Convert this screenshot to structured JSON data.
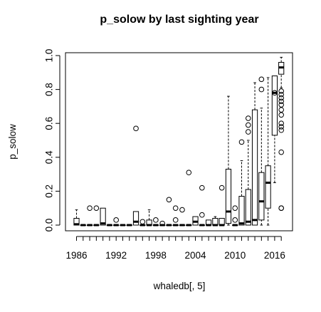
{
  "chart_data": {
    "type": "boxplot",
    "title": "p_solow by last sighting year",
    "xlabel": "whaledb[, 5]",
    "ylabel": "p_solow",
    "ylim": [
      0,
      1
    ],
    "yticks": [
      "0.0",
      "0.2",
      "0.4",
      "0.6",
      "0.8",
      "1.0"
    ],
    "xtick_labels": [
      "1986",
      "1992",
      "1998",
      "2004",
      "2010",
      "2016"
    ],
    "grid": false,
    "legend": "none",
    "boxes": [
      {
        "year": 1986,
        "lo": 0.0,
        "q1": 0.0,
        "med": 0.005,
        "q3": 0.04,
        "hi": 0.09,
        "out": []
      },
      {
        "year": 1987,
        "lo": 0.0,
        "q1": 0.0,
        "med": 0.0,
        "q3": 0.0,
        "hi": 0.0,
        "out": []
      },
      {
        "year": 1988,
        "lo": 0.0,
        "q1": 0.0,
        "med": 0.0,
        "q3": 0.0,
        "hi": 0.0,
        "out": [
          0.1
        ]
      },
      {
        "year": 1989,
        "lo": 0.0,
        "q1": 0.0,
        "med": 0.0,
        "q3": 0.0,
        "hi": 0.0,
        "out": [
          0.1
        ]
      },
      {
        "year": 1990,
        "lo": 0.0,
        "q1": 0.0,
        "med": 0.01,
        "q3": 0.1,
        "hi": 0.1,
        "out": []
      },
      {
        "year": 1991,
        "lo": 0.0,
        "q1": 0.0,
        "med": 0.0,
        "q3": 0.0,
        "hi": 0.0,
        "out": []
      },
      {
        "year": 1992,
        "lo": 0.0,
        "q1": 0.0,
        "med": 0.0,
        "q3": 0.0,
        "hi": 0.0,
        "out": [
          0.03
        ]
      },
      {
        "year": 1993,
        "lo": 0.0,
        "q1": 0.0,
        "med": 0.0,
        "q3": 0.0,
        "hi": 0.0,
        "out": []
      },
      {
        "year": 1994,
        "lo": 0.0,
        "q1": 0.0,
        "med": 0.0,
        "q3": 0.0,
        "hi": 0.0,
        "out": []
      },
      {
        "year": 1995,
        "lo": 0.0,
        "q1": 0.0,
        "med": 0.02,
        "q3": 0.08,
        "hi": 0.08,
        "out": [
          0.57
        ]
      },
      {
        "year": 1996,
        "lo": 0.0,
        "q1": 0.0,
        "med": 0.0,
        "q3": 0.0,
        "hi": 0.0,
        "out": [
          0.02
        ]
      },
      {
        "year": 1997,
        "lo": 0.0,
        "q1": 0.0,
        "med": 0.0,
        "q3": 0.03,
        "hi": 0.09,
        "out": []
      },
      {
        "year": 1998,
        "lo": 0.0,
        "q1": 0.0,
        "med": 0.0,
        "q3": 0.0,
        "hi": 0.0,
        "out": [
          0.03
        ]
      },
      {
        "year": 1999,
        "lo": 0.0,
        "q1": 0.0,
        "med": 0.0,
        "q3": 0.0,
        "hi": 0.0,
        "out": [
          0.01
        ]
      },
      {
        "year": 2000,
        "lo": 0.0,
        "q1": 0.0,
        "med": 0.0,
        "q3": 0.0,
        "hi": 0.0,
        "out": [
          0.15
        ]
      },
      {
        "year": 2001,
        "lo": 0.0,
        "q1": 0.0,
        "med": 0.0,
        "q3": 0.0,
        "hi": 0.0,
        "out": [
          0.1,
          0.03
        ]
      },
      {
        "year": 2002,
        "lo": 0.0,
        "q1": 0.0,
        "med": 0.0,
        "q3": 0.0,
        "hi": 0.0,
        "out": [
          0.09
        ]
      },
      {
        "year": 2003,
        "lo": 0.0,
        "q1": 0.0,
        "med": 0.0,
        "q3": 0.0,
        "hi": 0.0,
        "out": [
          0.31
        ]
      },
      {
        "year": 2004,
        "lo": 0.0,
        "q1": 0.0,
        "med": 0.02,
        "q3": 0.05,
        "hi": 0.05,
        "out": []
      },
      {
        "year": 2005,
        "lo": 0.0,
        "q1": 0.0,
        "med": 0.0,
        "q3": 0.0,
        "hi": 0.0,
        "out": [
          0.22,
          0.06
        ]
      },
      {
        "year": 2006,
        "lo": 0.0,
        "q1": 0.0,
        "med": 0.0,
        "q3": 0.03,
        "hi": 0.03,
        "out": []
      },
      {
        "year": 2007,
        "lo": 0.0,
        "q1": 0.0,
        "med": 0.0,
        "q3": 0.04,
        "hi": 0.05,
        "out": []
      },
      {
        "year": 2008,
        "lo": 0.0,
        "q1": 0.0,
        "med": 0.0,
        "q3": 0.04,
        "hi": 0.04,
        "out": [
          0.22
        ]
      },
      {
        "year": 2009,
        "lo": 0.0,
        "q1": 0.01,
        "med": 0.08,
        "q3": 0.33,
        "hi": 0.76,
        "out": []
      },
      {
        "year": 2010,
        "lo": 0.0,
        "q1": 0.0,
        "med": 0.0,
        "q3": 0.0,
        "hi": 0.0,
        "out": [
          0.1,
          0.03
        ]
      },
      {
        "year": 2011,
        "lo": 0.0,
        "q1": 0.0,
        "med": 0.01,
        "q3": 0.17,
        "hi": 0.38,
        "out": [
          0.49
        ]
      },
      {
        "year": 2012,
        "lo": 0.0,
        "q1": 0.0,
        "med": 0.02,
        "q3": 0.21,
        "hi": 0.5,
        "out": [
          0.55,
          0.59,
          0.63
        ]
      },
      {
        "year": 2013,
        "lo": 0.0,
        "q1": 0.0,
        "med": 0.03,
        "q3": 0.68,
        "hi": 0.84,
        "out": []
      },
      {
        "year": 2014,
        "lo": 0.0,
        "q1": 0.03,
        "med": 0.14,
        "q3": 0.31,
        "hi": 0.69,
        "out": [
          0.8,
          0.86
        ]
      },
      {
        "year": 2015,
        "lo": 0.0,
        "q1": 0.1,
        "med": 0.25,
        "q3": 0.35,
        "hi": 0.87,
        "out": []
      },
      {
        "year": 2016,
        "lo": 0.25,
        "q1": 0.53,
        "med": 0.78,
        "q3": 0.88,
        "hi": 0.88,
        "out": [
          0.78
        ]
      },
      {
        "year": 2017,
        "lo": 0.81,
        "q1": 0.89,
        "med": 0.93,
        "q3": 0.96,
        "hi": 0.99,
        "out": [
          0.79,
          0.77,
          0.75,
          0.73,
          0.71,
          0.68,
          0.65,
          0.6,
          0.58,
          0.56,
          0.43,
          0.1,
          0.1
        ]
      }
    ]
  }
}
